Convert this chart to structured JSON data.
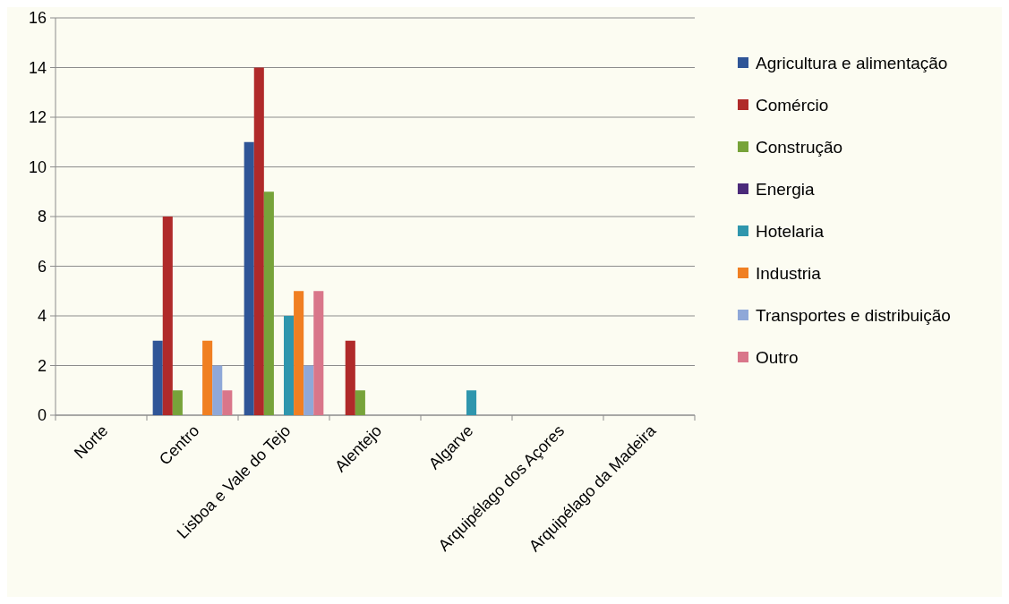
{
  "chart_data": {
    "type": "bar",
    "categories": [
      "Norte",
      "Centro",
      "Lisboa e Vale do Tejo",
      "Alentejo",
      "Algarve",
      "Arquipélago dos Açores",
      "Arquipélago da Madeira"
    ],
    "series": [
      {
        "name": "Agricultura e alimentação",
        "color": "#2f5597",
        "values": [
          0,
          3,
          11,
          0,
          0,
          0,
          0
        ]
      },
      {
        "name": "Comércio",
        "color": "#b02a2a",
        "values": [
          0,
          8,
          14,
          3,
          0,
          0,
          0
        ]
      },
      {
        "name": "Construção",
        "color": "#77a33a",
        "values": [
          0,
          1,
          9,
          1,
          0,
          0,
          0
        ]
      },
      {
        "name": "Energia",
        "color": "#4b2a7a",
        "values": [
          0,
          0,
          0,
          0,
          0,
          0,
          0
        ]
      },
      {
        "name": "Hotelaria",
        "color": "#2f96ad",
        "values": [
          0,
          0,
          4,
          0,
          1,
          0,
          0
        ]
      },
      {
        "name": "Industria",
        "color": "#f07f22",
        "values": [
          0,
          3,
          5,
          0,
          0,
          0,
          0
        ]
      },
      {
        "name": "Transportes e distribuição",
        "color": "#8fa8d8",
        "values": [
          0,
          2,
          2,
          0,
          0,
          0,
          0
        ]
      },
      {
        "name": "Outro",
        "color": "#d9768a",
        "values": [
          0,
          1,
          5,
          0,
          0,
          0,
          0
        ]
      }
    ],
    "ylim": [
      0,
      16
    ],
    "yticks": [
      0,
      2,
      4,
      6,
      8,
      10,
      12,
      14,
      16
    ],
    "grid": "y",
    "legend": "right"
  }
}
